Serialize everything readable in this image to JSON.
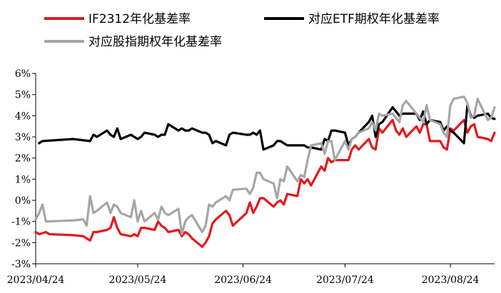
{
  "chart_data": {
    "type": "line",
    "title": "",
    "xlabel": "",
    "ylabel": "",
    "ylim": [
      -3,
      6
    ],
    "y_unit": "%",
    "y_ticks": [
      -3,
      -2,
      -1,
      0,
      1,
      2,
      3,
      4,
      5,
      6
    ],
    "y_tick_labels": [
      "-3%",
      "-2%",
      "-1%",
      "0%",
      "1%",
      "2%",
      "3%",
      "4%",
      "5%",
      "6%"
    ],
    "x_ticks": [
      "2023/04/24",
      "2023/05/24",
      "2023/06/24",
      "2023/07/24",
      "2023/08/24"
    ],
    "grid": false,
    "legend_position": "top",
    "series": [
      {
        "name": "IF2312年化基差率",
        "color": "#e31a1c",
        "points": [
          [
            "2023/04/24",
            -1.5
          ],
          [
            "2023/04/25",
            -1.6
          ],
          [
            "2023/04/27",
            -1.5
          ],
          [
            "2023/04/28",
            -1.6
          ],
          [
            "2023/05/05",
            -1.65
          ],
          [
            "2023/05/08",
            -1.7
          ],
          [
            "2023/05/09",
            -1.8
          ],
          [
            "2023/05/10",
            -1.9
          ],
          [
            "2023/05/11",
            -1.5
          ],
          [
            "2023/05/12",
            -1.5
          ],
          [
            "2023/05/15",
            -1.4
          ],
          [
            "2023/05/16",
            -1.3
          ],
          [
            "2023/05/17",
            -0.8
          ],
          [
            "2023/05/18",
            -1.3
          ],
          [
            "2023/05/19",
            -1.6
          ],
          [
            "2023/05/22",
            -1.7
          ],
          [
            "2023/05/23",
            -1.6
          ],
          [
            "2023/05/24",
            -1.7
          ],
          [
            "2023/05/25",
            -1.3
          ],
          [
            "2023/05/26",
            -1.3
          ],
          [
            "2023/05/29",
            -1.4
          ],
          [
            "2023/05/30",
            -1.0
          ],
          [
            "2023/05/31",
            -1.2
          ],
          [
            "2023/06/01",
            -1.3
          ],
          [
            "2023/06/02",
            -1.5
          ],
          [
            "2023/06/05",
            -1.4
          ],
          [
            "2023/06/06",
            -1.7
          ],
          [
            "2023/06/07",
            -1.5
          ],
          [
            "2023/06/08",
            -1.6
          ],
          [
            "2023/06/09",
            -1.8
          ],
          [
            "2023/06/12",
            -2.2
          ],
          [
            "2023/06/13",
            -2.0
          ],
          [
            "2023/06/14",
            -1.7
          ],
          [
            "2023/06/15",
            -1.1
          ],
          [
            "2023/06/16",
            -0.9
          ],
          [
            "2023/06/19",
            -0.5
          ],
          [
            "2023/06/20",
            -0.7
          ],
          [
            "2023/06/21",
            -1.2
          ],
          [
            "2023/06/25",
            -0.6
          ],
          [
            "2023/06/26",
            -0.1
          ],
          [
            "2023/06/27",
            -0.6
          ],
          [
            "2023/06/28",
            -0.3
          ],
          [
            "2023/06/29",
            0.1
          ],
          [
            "2023/06/30",
            0.1
          ],
          [
            "2023/07/03",
            -0.3
          ],
          [
            "2023/07/04",
            -0.1
          ],
          [
            "2023/07/05",
            0.0
          ],
          [
            "2023/07/06",
            -0.2
          ],
          [
            "2023/07/07",
            0.3
          ],
          [
            "2023/07/10",
            0.2
          ],
          [
            "2023/07/11",
            1.0
          ],
          [
            "2023/07/12",
            0.8
          ],
          [
            "2023/07/13",
            1.0
          ],
          [
            "2023/07/14",
            0.7
          ],
          [
            "2023/07/17",
            1.6
          ],
          [
            "2023/07/18",
            1.4
          ],
          [
            "2023/07/19",
            2.0
          ],
          [
            "2023/07/20",
            1.8
          ],
          [
            "2023/07/21",
            1.9
          ],
          [
            "2023/07/24",
            1.9
          ],
          [
            "2023/07/25",
            1.9
          ],
          [
            "2023/07/26",
            2.4
          ],
          [
            "2023/07/27",
            2.6
          ],
          [
            "2023/07/28",
            2.4
          ],
          [
            "2023/07/31",
            2.9
          ],
          [
            "2023/08/01",
            2.5
          ],
          [
            "2023/08/02",
            2.4
          ],
          [
            "2023/08/03",
            3.4
          ],
          [
            "2023/08/04",
            3.2
          ],
          [
            "2023/08/07",
            3.8
          ],
          [
            "2023/08/08",
            3.3
          ],
          [
            "2023/08/09",
            3.1
          ],
          [
            "2023/08/10",
            3.4
          ],
          [
            "2023/08/11",
            3.0
          ],
          [
            "2023/08/14",
            3.5
          ],
          [
            "2023/08/15",
            3.2
          ],
          [
            "2023/08/16",
            3.6
          ],
          [
            "2023/08/17",
            3.6
          ],
          [
            "2023/08/18",
            2.8
          ],
          [
            "2023/08/21",
            2.8
          ],
          [
            "2023/08/22",
            2.5
          ],
          [
            "2023/08/23",
            2.4
          ],
          [
            "2023/08/24",
            3.4
          ],
          [
            "2023/08/25",
            3.3
          ],
          [
            "2023/08/28",
            3.8
          ],
          [
            "2023/08/29",
            3.2
          ],
          [
            "2023/08/30",
            3.5
          ],
          [
            "2023/08/31",
            3.6
          ],
          [
            "2023/09/01",
            3.0
          ],
          [
            "2023/09/04",
            2.9
          ],
          [
            "2023/09/05",
            2.8
          ],
          [
            "2023/09/06",
            3.2
          ]
        ]
      },
      {
        "name": "对应ETF期权年化基差率",
        "color": "#000000",
        "points": [
          [
            "2023/04/25",
            2.7
          ],
          [
            "2023/04/26",
            2.8
          ],
          [
            "2023/05/05",
            2.9
          ],
          [
            "2023/05/10",
            2.8
          ],
          [
            "2023/05/11",
            3.1
          ],
          [
            "2023/05/12",
            3.0
          ],
          [
            "2023/05/15",
            3.3
          ],
          [
            "2023/05/16",
            3.1
          ],
          [
            "2023/05/17",
            3.0
          ],
          [
            "2023/05/18",
            3.4
          ],
          [
            "2023/05/19",
            2.9
          ],
          [
            "2023/05/22",
            3.1
          ],
          [
            "2023/05/23",
            3.0
          ],
          [
            "2023/05/24",
            2.9
          ],
          [
            "2023/05/25",
            3.0
          ],
          [
            "2023/05/26",
            3.2
          ],
          [
            "2023/05/29",
            3.1
          ],
          [
            "2023/05/30",
            3.0
          ],
          [
            "2023/05/31",
            3.1
          ],
          [
            "2023/06/01",
            3.1
          ],
          [
            "2023/06/02",
            3.6
          ],
          [
            "2023/06/05",
            3.3
          ],
          [
            "2023/06/06",
            3.4
          ],
          [
            "2023/06/07",
            3.3
          ],
          [
            "2023/06/08",
            3.3
          ],
          [
            "2023/06/09",
            3.4
          ],
          [
            "2023/06/12",
            3.2
          ],
          [
            "2023/06/13",
            3.2
          ],
          [
            "2023/06/14",
            3.1
          ],
          [
            "2023/06/15",
            2.7
          ],
          [
            "2023/06/16",
            2.8
          ],
          [
            "2023/06/19",
            2.6
          ],
          [
            "2023/06/20",
            3.1
          ],
          [
            "2023/06/21",
            3.2
          ],
          [
            "2023/06/25",
            3.1
          ],
          [
            "2023/06/26",
            3.1
          ],
          [
            "2023/06/27",
            3.2
          ],
          [
            "2023/06/28",
            3.1
          ],
          [
            "2023/06/29",
            3.3
          ],
          [
            "2023/06/30",
            2.4
          ],
          [
            "2023/07/03",
            2.6
          ],
          [
            "2023/07/04",
            2.8
          ],
          [
            "2023/07/05",
            2.8
          ],
          [
            "2023/07/06",
            2.7
          ],
          [
            "2023/07/07",
            2.6
          ],
          [
            "2023/07/10",
            2.6
          ],
          [
            "2023/07/11",
            2.6
          ],
          [
            "2023/07/12",
            2.6
          ],
          [
            "2023/07/13",
            2.5
          ],
          [
            "2023/07/14",
            2.5
          ],
          [
            "2023/07/17",
            2.4
          ],
          [
            "2023/07/18",
            2.9
          ],
          [
            "2023/07/19",
            2.8
          ],
          [
            "2023/07/20",
            3.3
          ],
          [
            "2023/07/21",
            3.3
          ],
          [
            "2023/07/24",
            3.2
          ],
          [
            "2023/07/25",
            2.6
          ],
          [
            "2023/07/26",
            2.9
          ],
          [
            "2023/07/27",
            3.0
          ],
          [
            "2023/07/28",
            3.2
          ],
          [
            "2023/07/31",
            3.7
          ],
          [
            "2023/08/01",
            4.0
          ],
          [
            "2023/08/02",
            3.0
          ],
          [
            "2023/08/03",
            3.6
          ],
          [
            "2023/08/04",
            3.7
          ],
          [
            "2023/08/07",
            4.4
          ],
          [
            "2023/08/08",
            4.2
          ],
          [
            "2023/08/09",
            4.0
          ],
          [
            "2023/08/10",
            4.1
          ],
          [
            "2023/08/11",
            4.1
          ],
          [
            "2023/08/14",
            4.1
          ],
          [
            "2023/08/15",
            3.8
          ],
          [
            "2023/08/16",
            4.2
          ],
          [
            "2023/08/17",
            3.6
          ],
          [
            "2023/08/18",
            3.8
          ],
          [
            "2023/08/21",
            3.7
          ],
          [
            "2023/08/22",
            3.3
          ],
          [
            "2023/08/23",
            3.5
          ],
          [
            "2023/08/24",
            3.3
          ],
          [
            "2023/08/25",
            3.2
          ],
          [
            "2023/08/28",
            2.7
          ],
          [
            "2023/08/29",
            4.5
          ],
          [
            "2023/08/30",
            4.0
          ],
          [
            "2023/08/31",
            3.9
          ],
          [
            "2023/09/01",
            4.0
          ],
          [
            "2023/09/04",
            4.1
          ],
          [
            "2023/09/05",
            3.9
          ],
          [
            "2023/09/06",
            3.85
          ]
        ]
      },
      {
        "name": "对应股指期权年化基差率",
        "color": "#a6a6a6",
        "points": [
          [
            "2023/04/24",
            -0.9
          ],
          [
            "2023/04/25",
            -0.6
          ],
          [
            "2023/04/26",
            -0.2
          ],
          [
            "2023/04/27",
            -1.0
          ],
          [
            "2023/05/05",
            -0.95
          ],
          [
            "2023/05/08",
            -0.9
          ],
          [
            "2023/05/09",
            -1.2
          ],
          [
            "2023/05/10",
            0.2
          ],
          [
            "2023/05/11",
            -0.6
          ],
          [
            "2023/05/12",
            -0.5
          ],
          [
            "2023/05/15",
            -0.1
          ],
          [
            "2023/05/16",
            -0.6
          ],
          [
            "2023/05/17",
            -0.2
          ],
          [
            "2023/05/18",
            -0.3
          ],
          [
            "2023/05/19",
            -0.6
          ],
          [
            "2023/05/22",
            -0.8
          ],
          [
            "2023/05/23",
            0.0
          ],
          [
            "2023/05/24",
            -1.0
          ],
          [
            "2023/05/25",
            -0.5
          ],
          [
            "2023/05/26",
            -1.0
          ],
          [
            "2023/05/29",
            -0.6
          ],
          [
            "2023/05/30",
            -0.9
          ],
          [
            "2023/05/31",
            -0.3
          ],
          [
            "2023/06/01",
            -0.6
          ],
          [
            "2023/06/02",
            -0.7
          ],
          [
            "2023/06/05",
            -0.4
          ],
          [
            "2023/06/06",
            -1.6
          ],
          [
            "2023/06/07",
            -1.0
          ],
          [
            "2023/06/08",
            -0.8
          ],
          [
            "2023/06/09",
            -0.7
          ],
          [
            "2023/06/12",
            -1.5
          ],
          [
            "2023/06/13",
            -1.2
          ],
          [
            "2023/06/14",
            -0.2
          ],
          [
            "2023/06/15",
            -0.3
          ],
          [
            "2023/06/16",
            -0.1
          ],
          [
            "2023/06/19",
            0.2
          ],
          [
            "2023/06/20",
            0.0
          ],
          [
            "2023/06/21",
            0.5
          ],
          [
            "2023/06/25",
            0.55
          ],
          [
            "2023/06/26",
            0.3
          ],
          [
            "2023/06/27",
            0.6
          ],
          [
            "2023/06/28",
            1.3
          ],
          [
            "2023/06/29",
            1.3
          ],
          [
            "2023/06/30",
            1.0
          ],
          [
            "2023/07/03",
            0.8
          ],
          [
            "2023/07/04",
            0.1
          ],
          [
            "2023/07/05",
            1.0
          ],
          [
            "2023/07/06",
            0.9
          ],
          [
            "2023/07/07",
            1.6
          ],
          [
            "2023/07/10",
            0.9
          ],
          [
            "2023/07/11",
            1.2
          ],
          [
            "2023/07/12",
            1.1
          ],
          [
            "2023/07/13",
            1.9
          ],
          [
            "2023/07/14",
            2.6
          ],
          [
            "2023/07/17",
            2.7
          ],
          [
            "2023/07/18",
            2.2
          ],
          [
            "2023/07/19",
            2.8
          ],
          [
            "2023/07/20",
            2.8
          ],
          [
            "2023/07/21",
            1.9
          ],
          [
            "2023/07/24",
            2.8
          ],
          [
            "2023/07/25",
            2.4
          ],
          [
            "2023/07/26",
            2.9
          ],
          [
            "2023/07/27",
            3.0
          ],
          [
            "2023/07/28",
            3.2
          ],
          [
            "2023/07/31",
            3.4
          ],
          [
            "2023/08/01",
            3.7
          ],
          [
            "2023/08/02",
            3.3
          ],
          [
            "2023/08/03",
            4.1
          ],
          [
            "2023/08/04",
            4.0
          ],
          [
            "2023/08/07",
            4.1
          ],
          [
            "2023/08/08",
            3.9
          ],
          [
            "2023/08/09",
            3.7
          ],
          [
            "2023/08/10",
            4.5
          ],
          [
            "2023/08/11",
            4.7
          ],
          [
            "2023/08/14",
            4.1
          ],
          [
            "2023/08/15",
            3.9
          ],
          [
            "2023/08/16",
            3.7
          ],
          [
            "2023/08/17",
            4.5
          ],
          [
            "2023/08/18",
            3.8
          ],
          [
            "2023/08/21",
            3.6
          ],
          [
            "2023/08/22",
            3.2
          ],
          [
            "2023/08/23",
            3.0
          ],
          [
            "2023/08/24",
            4.5
          ],
          [
            "2023/08/25",
            4.8
          ],
          [
            "2023/08/28",
            4.9
          ],
          [
            "2023/08/29",
            4.6
          ],
          [
            "2023/08/30",
            3.9
          ],
          [
            "2023/08/31",
            4.0
          ],
          [
            "2023/09/01",
            4.8
          ],
          [
            "2023/09/04",
            3.8
          ],
          [
            "2023/09/05",
            3.9
          ],
          [
            "2023/09/06",
            4.4
          ]
        ]
      }
    ]
  }
}
